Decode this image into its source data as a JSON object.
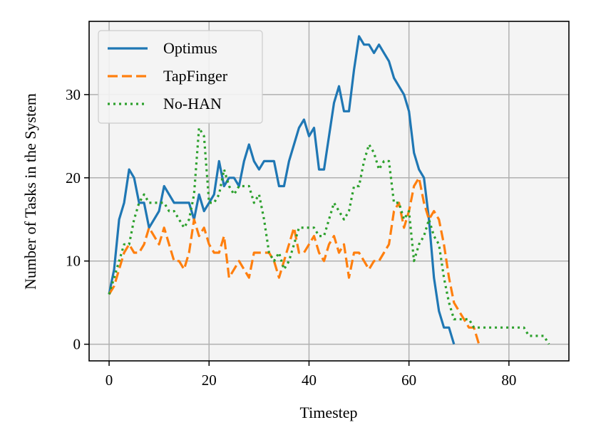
{
  "chart_data": {
    "type": "line",
    "title": "",
    "xlabel": "Timestep",
    "ylabel": "Number of Tasks in the System",
    "xlim": [
      -4,
      92
    ],
    "ylim": [
      -2,
      38.8
    ],
    "xticks": [
      0,
      20,
      40,
      60,
      80
    ],
    "yticks": [
      0,
      10,
      20,
      30
    ],
    "grid": true,
    "legend_position": "upper-left",
    "background": "#f4f4f4",
    "series": [
      {
        "name": "Optimus",
        "color": "#1f77b4",
        "linestyle": "solid",
        "x": [
          0,
          1,
          2,
          3,
          4,
          5,
          6,
          7,
          8,
          9,
          10,
          11,
          12,
          13,
          14,
          15,
          16,
          17,
          18,
          19,
          20,
          21,
          22,
          23,
          24,
          25,
          26,
          27,
          28,
          29,
          30,
          31,
          32,
          33,
          34,
          35,
          36,
          37,
          38,
          39,
          40,
          41,
          42,
          43,
          44,
          45,
          46,
          47,
          48,
          49,
          50,
          51,
          52,
          53,
          54,
          55,
          56,
          57,
          58,
          59,
          60,
          61,
          62,
          63,
          64,
          65,
          66,
          67,
          68,
          69
        ],
        "y": [
          6,
          9,
          15,
          17,
          21,
          20,
          17,
          17,
          14,
          15,
          16,
          19,
          18,
          17,
          17,
          17,
          17,
          15,
          18,
          16,
          17,
          18,
          22,
          19,
          20,
          20,
          19,
          22,
          24,
          22,
          21,
          22,
          22,
          22,
          19,
          19,
          22,
          24,
          26,
          27,
          25,
          26,
          21,
          21,
          25,
          29,
          31,
          28,
          28,
          33,
          37,
          36,
          36,
          35,
          36,
          35,
          34,
          32,
          31,
          30,
          28,
          23,
          21,
          20,
          15,
          8,
          4,
          2,
          2,
          0
        ]
      },
      {
        "name": "TapFinger",
        "color": "#ff7f0e",
        "linestyle": "dashed",
        "x": [
          0,
          1,
          2,
          3,
          4,
          5,
          6,
          7,
          8,
          9,
          10,
          11,
          12,
          13,
          14,
          15,
          16,
          17,
          18,
          19,
          20,
          21,
          22,
          23,
          24,
          25,
          26,
          27,
          28,
          29,
          30,
          31,
          32,
          33,
          34,
          35,
          36,
          37,
          38,
          39,
          40,
          41,
          42,
          43,
          44,
          45,
          46,
          47,
          48,
          49,
          50,
          51,
          52,
          53,
          54,
          55,
          56,
          57,
          58,
          59,
          60,
          61,
          62,
          63,
          64,
          65,
          66,
          67,
          68,
          69,
          70,
          71,
          72,
          73,
          74
        ],
        "y": [
          6,
          7,
          9,
          11,
          12,
          11,
          11,
          12,
          14,
          13,
          12,
          14,
          12,
          10,
          10,
          9,
          11,
          15,
          13,
          14,
          12,
          11,
          11,
          13,
          8,
          9,
          10,
          9,
          8,
          11,
          11,
          11,
          11,
          10,
          8,
          10,
          12,
          14,
          11,
          11,
          12,
          13,
          11,
          10,
          12,
          13,
          11,
          12,
          8,
          11,
          11,
          10,
          9,
          10,
          10,
          11,
          12,
          16,
          17,
          14,
          16,
          19,
          20,
          17,
          15,
          16,
          15,
          12,
          8,
          5,
          4,
          3,
          2,
          2,
          0
        ]
      },
      {
        "name": "No-HAN",
        "color": "#2ca02c",
        "linestyle": "dotted",
        "x": [
          0,
          1,
          2,
          3,
          4,
          5,
          6,
          7,
          8,
          9,
          10,
          11,
          12,
          13,
          14,
          15,
          16,
          17,
          18,
          19,
          20,
          21,
          22,
          23,
          24,
          25,
          26,
          27,
          28,
          29,
          30,
          31,
          32,
          33,
          34,
          35,
          36,
          37,
          38,
          39,
          40,
          41,
          42,
          43,
          44,
          45,
          46,
          47,
          48,
          49,
          50,
          51,
          52,
          53,
          54,
          55,
          56,
          57,
          58,
          59,
          60,
          61,
          62,
          63,
          64,
          65,
          66,
          67,
          68,
          69,
          70,
          71,
          72,
          73,
          74,
          75,
          76,
          77,
          78,
          79,
          80,
          81,
          82,
          83,
          84,
          85,
          86,
          87,
          88
        ],
        "y": [
          6,
          8,
          10,
          12,
          12,
          15,
          17,
          18,
          17,
          17,
          17,
          17,
          16,
          16,
          15,
          14,
          15,
          18,
          26,
          25,
          17,
          17,
          18,
          21,
          19,
          18,
          19,
          19,
          19,
          17,
          18,
          15,
          11,
          10,
          11,
          9,
          10,
          12,
          14,
          14,
          14,
          14,
          13,
          13,
          15,
          17,
          16,
          15,
          16,
          19,
          19,
          22,
          24,
          23,
          21,
          22,
          22,
          17,
          17,
          15,
          16,
          10,
          12,
          13,
          15,
          13,
          12,
          8,
          5,
          3,
          3,
          3,
          3,
          2,
          2,
          2,
          2,
          2,
          2,
          2,
          2,
          2,
          2,
          2,
          1,
          1,
          1,
          1,
          0
        ]
      }
    ]
  }
}
